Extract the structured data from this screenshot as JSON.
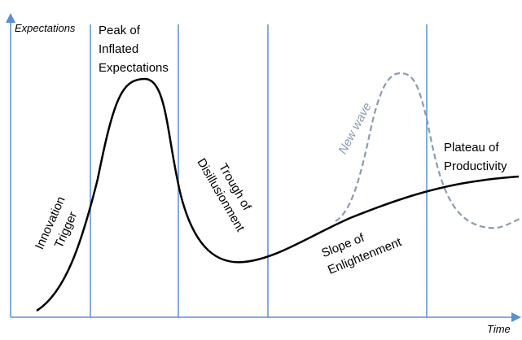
{
  "axes": {
    "y_label": "Expectations",
    "x_label": "Time"
  },
  "phases": [
    {
      "lines": [
        "Innovation",
        "Trigger"
      ]
    },
    {
      "lines": [
        "Peak of",
        "Inflated",
        "Expectations"
      ]
    },
    {
      "lines": [
        "Trough of",
        "Disillusionment"
      ]
    },
    {
      "lines": [
        "Slope of",
        "Enlightenment"
      ]
    },
    {
      "lines": [
        "Plateau of",
        "Productivity"
      ]
    }
  ],
  "new_wave": "New wave"
}
